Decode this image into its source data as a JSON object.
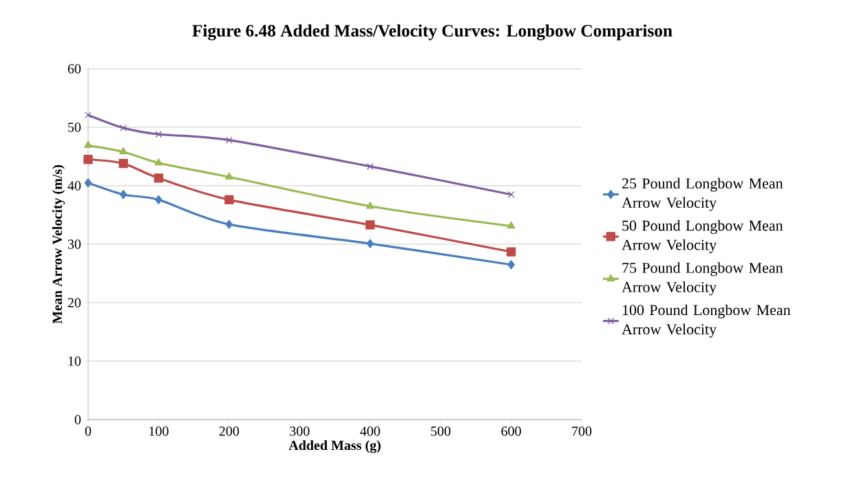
{
  "chart_data": {
    "type": "line",
    "title": "Figure 6.48 Added Mass/Velocity Curves: Longbow Comparison",
    "xlabel": "Added Mass (g)",
    "ylabel": "Mean Arrow Velocity (m/s)",
    "x": [
      0,
      50,
      100,
      200,
      400,
      600
    ],
    "series": [
      {
        "name": "25 Pound Longbow Mean Arrow Velocity",
        "color": "#4a7ebb",
        "marker": "diamond",
        "values": [
          40.5,
          38.5,
          37.6,
          33.4,
          30.1,
          26.5
        ]
      },
      {
        "name": "50 Pound Longbow Mean Arrow Velocity",
        "color": "#be4b48",
        "marker": "square",
        "values": [
          44.5,
          43.8,
          41.3,
          37.6,
          33.3,
          28.7
        ]
      },
      {
        "name": "75 Pound Longbow Mean Arrow Velocity",
        "color": "#98b954",
        "marker": "triangle",
        "values": [
          46.9,
          45.8,
          43.9,
          41.5,
          36.5,
          33.1
        ]
      },
      {
        "name": "100 Pound Longbow Mean Arrow Velocity",
        "color": "#7d60a0",
        "marker": "cross",
        "values": [
          52.1,
          49.9,
          48.8,
          47.8,
          43.3,
          38.5
        ]
      }
    ],
    "xlim": [
      0,
      700
    ],
    "ylim": [
      0,
      60
    ],
    "xticks": [
      0,
      100,
      200,
      300,
      400,
      500,
      600,
      700
    ],
    "yticks": [
      0,
      10,
      20,
      30,
      40,
      50,
      60
    ],
    "grid": "y",
    "legend": "right",
    "line_style": "solid"
  }
}
